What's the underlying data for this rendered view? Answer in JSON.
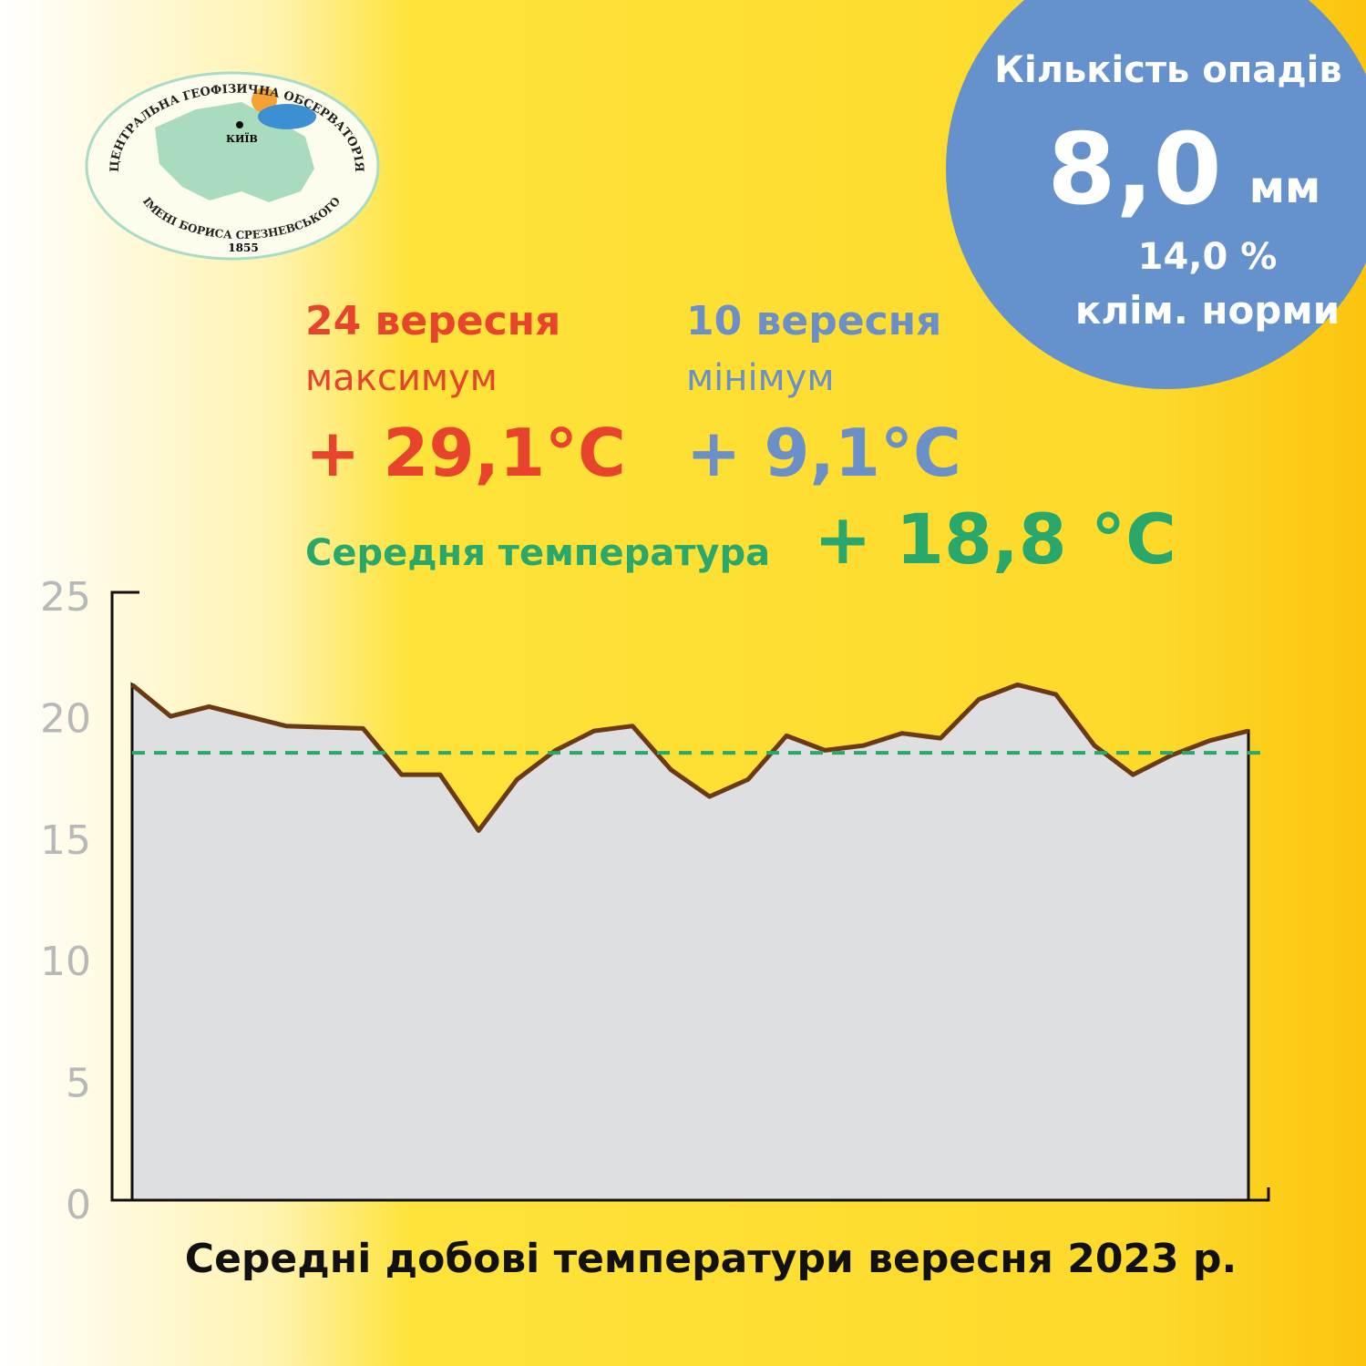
{
  "logo": {
    "top_text": "ЦЕНТРАЛЬНА ГЕОФІЗИЧНА ОБСЕРВАТОРІЯ",
    "bottom_text": "ІМЕНІ БОРИСА СРЕЗНЕВСЬКОГО",
    "year": "1855",
    "city": "КИЇВ"
  },
  "precipitation": {
    "title": "Кількість опадів",
    "amount": "8,0",
    "unit": "мм",
    "percent": "14,0 %",
    "norm": "клім. норми"
  },
  "max": {
    "date": "24 вересня",
    "label": "максимум",
    "value": "+ 29,1°C"
  },
  "min": {
    "date": "10 вересня",
    "label": "мінімум",
    "value": "+ 9,1°C"
  },
  "mean": {
    "label": "Середня температура",
    "value": "+ 18,8 °C"
  },
  "chart_data": {
    "type": "area",
    "title": "Середні добові температури вересня 2023 р.",
    "values": [
      21.2,
      19.9,
      20.3,
      19.9,
      19.5,
      19.45,
      19.4,
      17.5,
      17.5,
      15.2,
      17.3,
      18.5,
      19.3,
      19.5,
      17.7,
      16.6,
      17.3,
      19.1,
      18.5,
      18.7,
      19.2,
      19.0,
      20.6,
      21.2,
      20.8,
      18.7,
      17.5,
      18.3,
      18.9,
      19.3
    ],
    "line_color": "#6b3a12",
    "fill_color": "#dedfe1",
    "reference_line": 18.4,
    "reference_color": "#2aa76a",
    "ylim": [
      0,
      25
    ],
    "yticks": [
      0,
      5,
      10,
      15,
      20,
      25
    ],
    "grid": false
  }
}
